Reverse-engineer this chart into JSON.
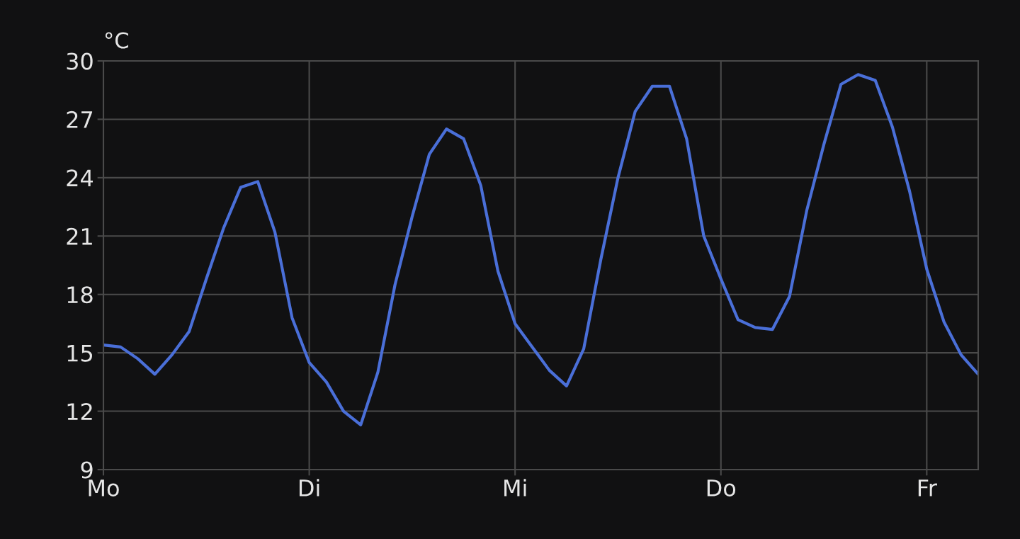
{
  "chart_data": {
    "type": "line",
    "ylabel": "°C",
    "categories": [
      "Mo",
      null,
      null,
      null,
      null,
      null,
      null,
      null,
      null,
      null,
      null,
      null,
      "Di",
      null,
      null,
      null,
      null,
      null,
      null,
      null,
      null,
      null,
      null,
      null,
      "Mi",
      null,
      null,
      null,
      null,
      null,
      null,
      null,
      null,
      null,
      null,
      null,
      "Do",
      null,
      null,
      null,
      null,
      null,
      null,
      null,
      null,
      null,
      null,
      null,
      "Fr",
      null,
      null,
      null
    ],
    "series": [
      {
        "color": "#4a6fd8",
        "values": [
          15.4,
          15.3,
          14.7,
          13.9,
          14.9,
          16.1,
          18.8,
          21.4,
          23.5,
          23.8,
          21.2,
          16.8,
          14.5,
          13.5,
          12.0,
          11.3,
          14.0,
          18.5,
          22.0,
          25.2,
          26.5,
          26.0,
          23.6,
          19.2,
          16.5,
          15.3,
          14.1,
          13.3,
          15.2,
          19.8,
          24.0,
          27.4,
          28.7,
          28.7,
          26.0,
          21.0,
          18.8,
          16.7,
          16.3,
          16.2,
          17.9,
          22.3,
          25.7,
          28.8,
          29.3,
          29.0,
          26.6,
          23.3,
          19.3,
          16.6,
          14.9,
          13.9
        ]
      }
    ],
    "ylim": [
      9,
      30
    ],
    "yticks": [
      9,
      12,
      15,
      18,
      21,
      24,
      27,
      30
    ],
    "grid": true,
    "marker": "none",
    "line_style": "solid"
  }
}
